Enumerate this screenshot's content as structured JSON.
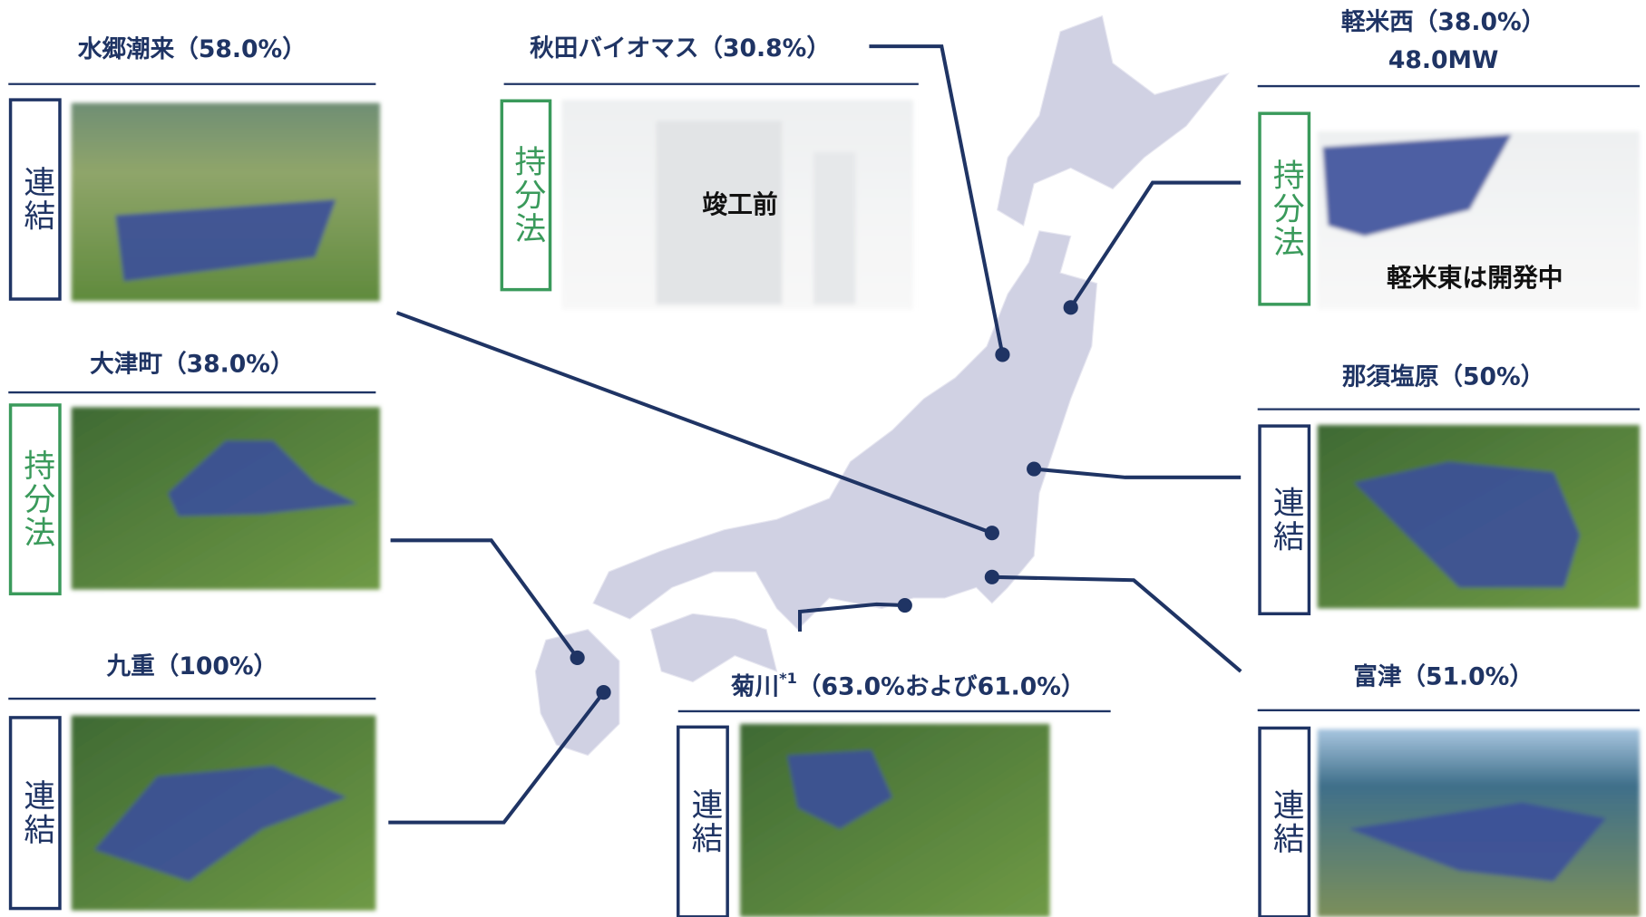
{
  "sites": [
    {
      "title": "水郷潮来（58.0%）",
      "badge": "連結"
    },
    {
      "title": "大津町（38.0%）",
      "badge": "持分法"
    },
    {
      "title": "九重（100%）",
      "badge": "連結"
    },
    {
      "title": "秋田バイオマス（30.8%）",
      "badge": "持分法",
      "note": "竣工前"
    },
    {
      "title": "軽米西（38.0%）",
      "subtitle": "48.0MW",
      "badge": "持分法",
      "note": "軽米東は開発中"
    },
    {
      "title": "那須塩原（50%）",
      "badge": "連結"
    },
    {
      "title": "富津（51.0%）",
      "badge": "連結"
    },
    {
      "title_name": "菊川",
      "title_sup": "*1",
      "title_share": "（63.0%および61.0%）",
      "badge": "連結"
    }
  ]
}
